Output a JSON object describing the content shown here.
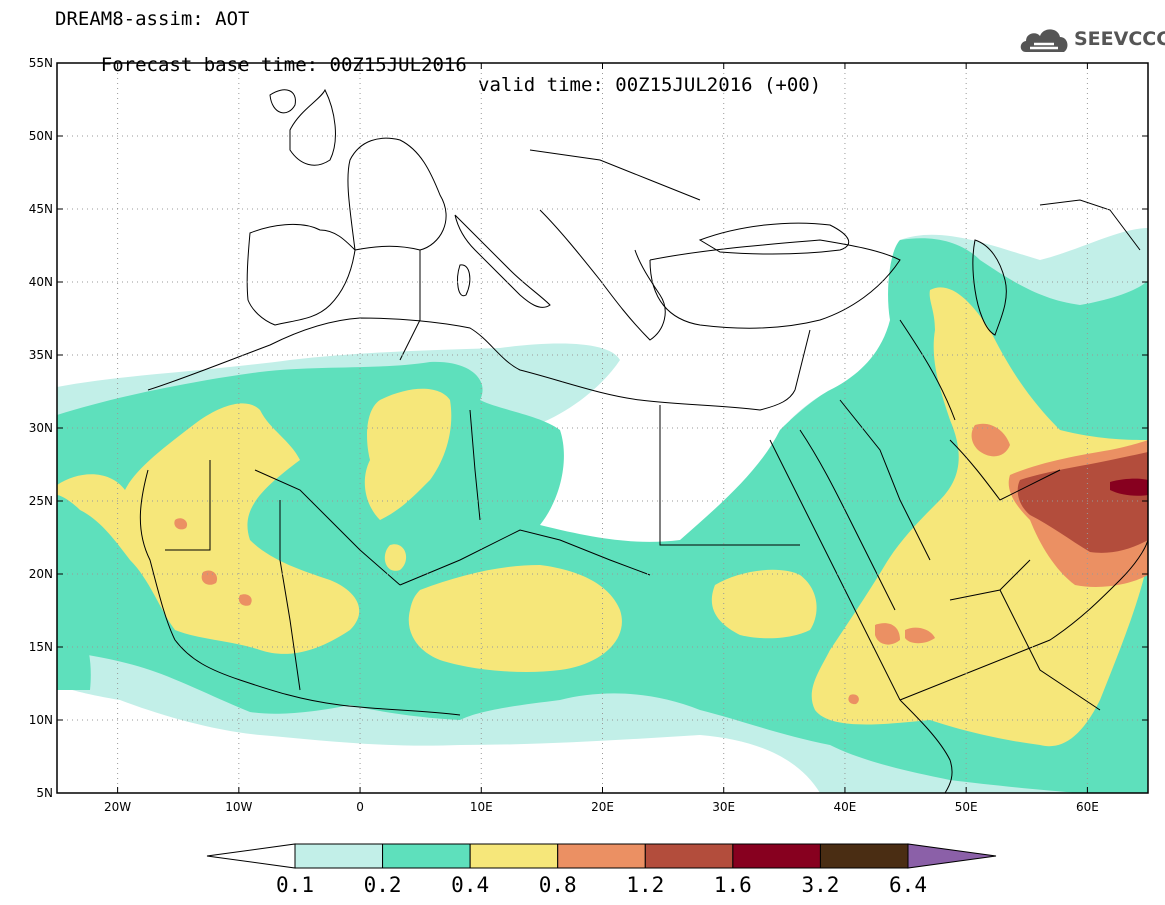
{
  "header": {
    "title": "DREAM8-assim: AOT",
    "base_time": "Forecast base time: 00Z15JUL2016",
    "valid_time": "valid time: 00Z15JUL2016 (+00)"
  },
  "logo": {
    "text": "SEEVCCC",
    "icon": "cloud-logo-icon",
    "color": "#555555"
  },
  "map": {
    "lon_range": [
      -25,
      65
    ],
    "lat_range": [
      5,
      55
    ],
    "x_ticks": [
      {
        "lon": -20,
        "label": "20W"
      },
      {
        "lon": -10,
        "label": "10W"
      },
      {
        "lon": 0,
        "label": "0"
      },
      {
        "lon": 10,
        "label": "10E"
      },
      {
        "lon": 20,
        "label": "20E"
      },
      {
        "lon": 30,
        "label": "30E"
      },
      {
        "lon": 40,
        "label": "40E"
      },
      {
        "lon": 50,
        "label": "50E"
      },
      {
        "lon": 60,
        "label": "60E"
      }
    ],
    "y_ticks": [
      {
        "lat": 55,
        "label": "55N"
      },
      {
        "lat": 50,
        "label": "50N"
      },
      {
        "lat": 45,
        "label": "45N"
      },
      {
        "lat": 40,
        "label": "40N"
      },
      {
        "lat": 35,
        "label": "35N"
      },
      {
        "lat": 30,
        "label": "30N"
      },
      {
        "lat": 25,
        "label": "25N"
      },
      {
        "lat": 20,
        "label": "20N"
      },
      {
        "lat": 15,
        "label": "15N"
      },
      {
        "lat": 10,
        "label": "10N"
      },
      {
        "lat": 5,
        "label": "5N"
      }
    ],
    "grid": "dotted",
    "coastline_color": "#000000"
  },
  "colorbar": {
    "levels": [
      "0.1",
      "0.2",
      "0.4",
      "0.8",
      "1.2",
      "1.6",
      "3.2",
      "6.4"
    ],
    "colors": [
      "#ffffff",
      "#c2efe8",
      "#5ee0bc",
      "#f6e77a",
      "#eb9063",
      "#b34d3c",
      "#87001f",
      "#4a2d13",
      "#8b60a8"
    ]
  }
}
